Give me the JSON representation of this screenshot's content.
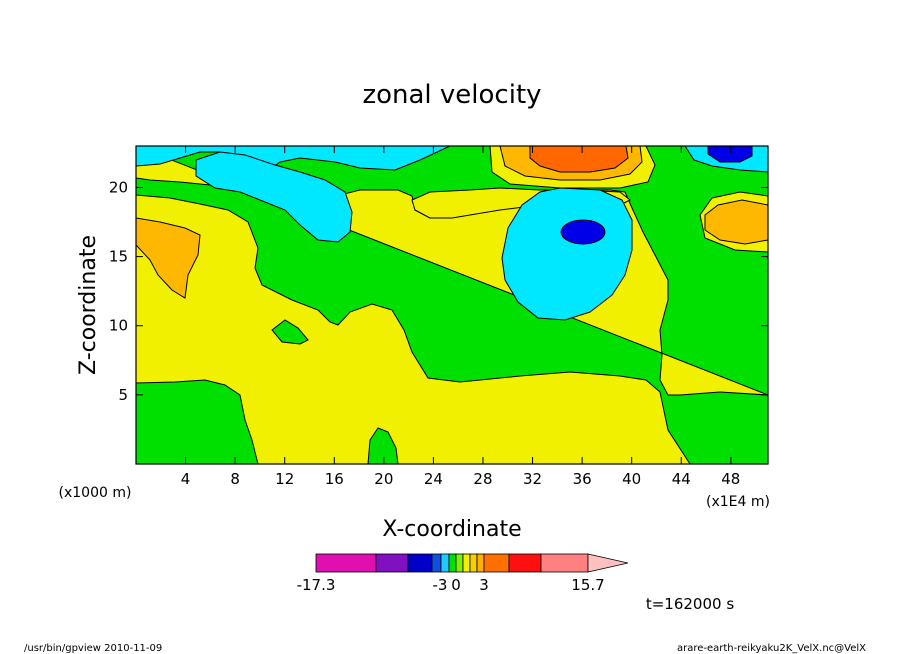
{
  "chart_data": {
    "type": "heatmap",
    "title": "zonal velocity",
    "xlabel": "X-coordinate",
    "ylabel": "Z-coordinate",
    "x_unit": "(x1E4 m)",
    "y_unit": "(x1000 m)",
    "xlim": [
      0,
      51
    ],
    "ylim": [
      0,
      23
    ],
    "x_ticks": [
      4,
      8,
      12,
      16,
      20,
      24,
      28,
      32,
      36,
      40,
      44,
      48
    ],
    "y_ticks": [
      5,
      10,
      15,
      20
    ],
    "colorbar": {
      "levels": [
        -17.3,
        -3,
        0,
        3,
        15.7
      ],
      "tick_labels": [
        "-17.3",
        "-3",
        "0",
        "3",
        "15.7"
      ],
      "colors": [
        "#e010b0",
        "#8010c0",
        "#0000c8",
        "#1050e0",
        "#20c8ff",
        "#00e000",
        "#80f000",
        "#f0f000",
        "#f8d000",
        "#ffb000",
        "#ff7000",
        "#ff1010",
        "#ff8080",
        "#ffc0c0"
      ]
    },
    "regions": [
      {
        "category": "0 to 1.5",
        "color": "#f0f000"
      },
      {
        "category": "-1.5 to 0",
        "color": "#00e000"
      },
      {
        "category": "-3 to -1.5",
        "color": "#00e8ff"
      },
      {
        "category": "-6 to -3",
        "color": "#0000e8"
      },
      {
        "category": "1.5 to 3",
        "color": "#ffb800"
      },
      {
        "category": "3 to 6",
        "color": "#ff6800"
      }
    ],
    "time_label": "t=162000 s"
  },
  "footer": {
    "left": "/usr/bin/gpview  2010-11-09",
    "right": "arare-earth-reikyaku2K_VelX.nc@VelX"
  }
}
